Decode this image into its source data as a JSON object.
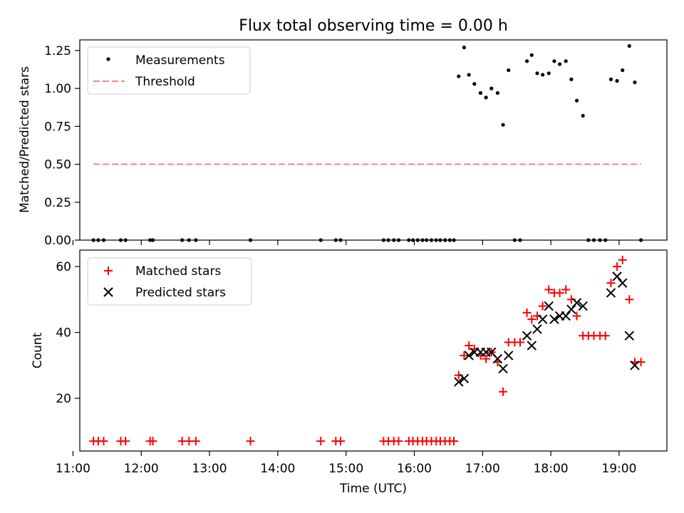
{
  "chart_data": [
    {
      "type": "scatter",
      "title": "Flux total observing time = 0.00 h",
      "xlabel": "",
      "ylabel": "Matched/Predicted stars",
      "xlim": [
        11.1,
        19.7
      ],
      "ylim": [
        0.0,
        1.32
      ],
      "xticks": [
        "11:00",
        "12:00",
        "13:00",
        "14:00",
        "15:00",
        "16:00",
        "17:00",
        "18:00",
        "19:00"
      ],
      "yticks": [
        "0.00",
        "0.25",
        "0.50",
        "0.75",
        "1.00",
        "1.25"
      ],
      "legend_position": "top-left",
      "colors": {
        "measurements": "#000000",
        "threshold": "#ff7f7f"
      },
      "series": [
        {
          "name": "Measurements",
          "marker": "dot",
          "x": [
            11.3,
            11.37,
            11.45,
            11.7,
            11.77,
            12.13,
            12.17,
            12.6,
            12.7,
            12.8,
            13.6,
            14.63,
            14.85,
            14.92,
            15.55,
            15.62,
            15.7,
            15.77,
            15.92,
            15.98,
            16.05,
            16.12,
            16.18,
            16.25,
            16.32,
            16.38,
            16.45,
            16.52,
            16.58,
            16.65,
            16.73,
            16.8,
            16.88,
            16.97,
            17.05,
            17.13,
            17.22,
            17.3,
            17.38,
            17.47,
            17.55,
            17.65,
            17.72,
            17.8,
            17.88,
            17.97,
            18.05,
            18.13,
            18.22,
            18.3,
            18.38,
            18.47,
            18.55,
            18.63,
            18.72,
            18.8,
            18.88,
            18.97,
            19.05,
            19.15,
            19.23,
            19.32
          ],
          "y": [
            0.0,
            0.0,
            0.0,
            0.0,
            0.0,
            0.0,
            0.0,
            0.0,
            0.0,
            0.0,
            0.0,
            0.0,
            0.0,
            0.0,
            0.0,
            0.0,
            0.0,
            0.0,
            0.0,
            0.0,
            0.0,
            0.0,
            0.0,
            0.0,
            0.0,
            0.0,
            0.0,
            0.0,
            0.0,
            1.08,
            1.27,
            1.09,
            1.03,
            0.97,
            0.94,
            1.0,
            0.97,
            0.76,
            1.12,
            0.0,
            0.0,
            1.18,
            1.22,
            1.1,
            1.09,
            1.1,
            1.18,
            1.16,
            1.18,
            1.06,
            0.92,
            0.82,
            0.0,
            0.0,
            0.0,
            0.0,
            1.06,
            1.05,
            1.12,
            1.28,
            1.04,
            0.0
          ]
        },
        {
          "name": "Threshold",
          "line": "dashed",
          "x": [
            11.3,
            19.32
          ],
          "y": [
            0.5,
            0.5
          ]
        }
      ]
    },
    {
      "type": "scatter",
      "title": "",
      "xlabel": "Time (UTC)",
      "ylabel": "Count",
      "xlim": [
        11.1,
        19.7
      ],
      "ylim": [
        4,
        65
      ],
      "xticks": [
        "11:00",
        "12:00",
        "13:00",
        "14:00",
        "15:00",
        "16:00",
        "17:00",
        "18:00",
        "19:00"
      ],
      "yticks": [
        "20",
        "40",
        "60"
      ],
      "legend_position": "top-left",
      "colors": {
        "matched": "#ff0000",
        "predicted": "#000000"
      },
      "series": [
        {
          "name": "Matched stars",
          "marker": "plus",
          "x": [
            11.3,
            11.37,
            11.45,
            11.7,
            11.77,
            12.13,
            12.17,
            12.6,
            12.7,
            12.8,
            13.6,
            14.63,
            14.85,
            14.92,
            15.55,
            15.62,
            15.7,
            15.77,
            15.92,
            15.98,
            16.05,
            16.12,
            16.18,
            16.25,
            16.32,
            16.38,
            16.45,
            16.52,
            16.58,
            16.65,
            16.73,
            16.8,
            16.88,
            16.97,
            17.05,
            17.13,
            17.22,
            17.3,
            17.38,
            17.47,
            17.55,
            17.65,
            17.72,
            17.8,
            17.88,
            17.97,
            18.05,
            18.13,
            18.22,
            18.3,
            18.38,
            18.47,
            18.55,
            18.63,
            18.72,
            18.8,
            18.88,
            18.97,
            19.05,
            19.15,
            19.23,
            19.32
          ],
          "y": [
            7,
            7,
            7,
            7,
            7,
            7,
            7,
            7,
            7,
            7,
            7,
            7,
            7,
            7,
            7,
            7,
            7,
            7,
            7,
            7,
            7,
            7,
            7,
            7,
            7,
            7,
            7,
            7,
            7,
            27,
            33,
            36,
            35,
            33,
            32,
            34,
            31,
            22,
            37,
            37,
            37,
            46,
            44,
            45,
            48,
            53,
            52,
            52,
            53,
            50,
            45,
            39,
            39,
            39,
            39,
            39,
            55,
            60,
            62,
            50,
            31,
            31
          ]
        },
        {
          "name": "Predicted stars",
          "marker": "x",
          "x": [
            16.65,
            16.73,
            16.8,
            16.88,
            16.97,
            17.05,
            17.13,
            17.22,
            17.3,
            17.38,
            17.65,
            17.72,
            17.8,
            17.88,
            17.97,
            18.05,
            18.13,
            18.22,
            18.3,
            18.38,
            18.47,
            18.88,
            18.97,
            19.05,
            19.15,
            19.23
          ],
          "y": [
            25,
            26,
            33,
            34,
            34,
            34,
            34,
            32,
            29,
            33,
            39,
            36,
            41,
            44,
            48,
            44,
            45,
            45,
            47,
            49,
            48,
            52,
            57,
            55,
            39,
            30
          ]
        }
      ]
    }
  ]
}
